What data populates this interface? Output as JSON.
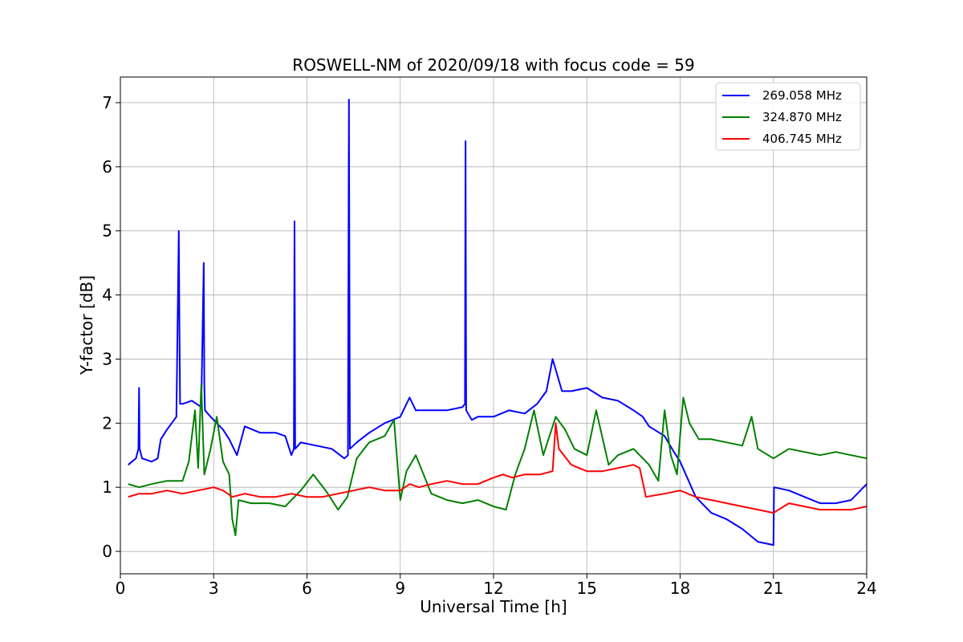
{
  "chart_data": {
    "type": "line",
    "title": "ROSWELL-NM of 2020/09/18 with focus code = 59",
    "xlabel": "Universal Time [h]",
    "ylabel": "Y-factor [dB]",
    "xlim": [
      0,
      24
    ],
    "ylim": [
      -0.35,
      7.4
    ],
    "xticks": [
      0,
      3,
      6,
      9,
      12,
      15,
      18,
      21,
      24
    ],
    "yticks": [
      0,
      1,
      2,
      3,
      4,
      5,
      6,
      7
    ],
    "xtick_labels": [
      "0",
      "3",
      "6",
      "9",
      "12",
      "15",
      "18",
      "21",
      "24"
    ],
    "ytick_labels": [
      "0",
      "1",
      "2",
      "3",
      "4",
      "5",
      "6",
      "7"
    ],
    "grid": true,
    "legend_position": "top-right",
    "series": [
      {
        "name": "269.058 MHz",
        "color": "#0000ff",
        "x": [
          0.25,
          0.5,
          0.58,
          0.6,
          0.62,
          0.7,
          1.0,
          1.2,
          1.3,
          1.5,
          1.8,
          1.88,
          1.9,
          1.92,
          2.0,
          2.3,
          2.6,
          2.68,
          2.7,
          2.72,
          2.9,
          3.3,
          3.5,
          3.75,
          4.0,
          4.5,
          5.0,
          5.3,
          5.5,
          5.58,
          5.6,
          5.62,
          5.8,
          6.3,
          6.8,
          7.2,
          7.32,
          7.35,
          7.38,
          7.6,
          8.0,
          8.5,
          9.0,
          9.3,
          9.5,
          10.0,
          10.5,
          11.0,
          11.08,
          11.1,
          11.12,
          11.3,
          11.5,
          12.0,
          12.5,
          13.0,
          13.4,
          13.7,
          13.9,
          14.2,
          14.5,
          15.0,
          15.5,
          16.0,
          16.5,
          16.8,
          17.0,
          17.5,
          17.8,
          18.0,
          18.5,
          19.0,
          19.5,
          20.0,
          20.5,
          21.0,
          21.02,
          21.5,
          22.0,
          22.5,
          23.0,
          23.5,
          24.0
        ],
        "y": [
          1.35,
          1.45,
          1.6,
          2.55,
          1.6,
          1.45,
          1.4,
          1.45,
          1.75,
          1.9,
          2.1,
          5.0,
          3.5,
          2.3,
          2.3,
          2.35,
          2.25,
          4.5,
          2.6,
          2.2,
          2.1,
          1.9,
          1.75,
          1.5,
          1.95,
          1.85,
          1.85,
          1.8,
          1.5,
          1.6,
          5.15,
          1.6,
          1.7,
          1.65,
          1.6,
          1.45,
          1.5,
          7.05,
          1.6,
          1.7,
          1.85,
          2.0,
          2.1,
          2.4,
          2.2,
          2.2,
          2.2,
          2.25,
          2.3,
          6.4,
          2.2,
          2.05,
          2.1,
          2.1,
          2.2,
          2.15,
          2.3,
          2.5,
          3.0,
          2.5,
          2.5,
          2.55,
          2.4,
          2.35,
          2.2,
          2.1,
          1.95,
          1.8,
          1.55,
          1.4,
          0.85,
          0.6,
          0.5,
          0.35,
          0.15,
          0.1,
          1.0,
          0.95,
          0.85,
          0.75,
          0.75,
          0.8,
          1.05
        ]
      },
      {
        "name": "324.870 MHz",
        "color": "#008000",
        "x": [
          0.25,
          0.6,
          1.0,
          1.5,
          2.0,
          2.2,
          2.4,
          2.5,
          2.6,
          2.7,
          2.9,
          3.1,
          3.3,
          3.5,
          3.6,
          3.7,
          3.8,
          4.2,
          4.8,
          5.3,
          5.8,
          6.2,
          6.6,
          7.0,
          7.3,
          7.6,
          8.0,
          8.5,
          8.8,
          9.0,
          9.2,
          9.5,
          10.0,
          10.5,
          11.0,
          11.5,
          12.0,
          12.4,
          12.7,
          13.0,
          13.3,
          13.6,
          14.0,
          14.3,
          14.6,
          15.0,
          15.3,
          15.7,
          16.0,
          16.5,
          16.7,
          17.0,
          17.3,
          17.5,
          17.7,
          17.9,
          18.1,
          18.3,
          18.6,
          19.0,
          19.5,
          20.0,
          20.3,
          20.5,
          21.0,
          21.5,
          22.0,
          22.5,
          23.0,
          23.5,
          24.0
        ],
        "y": [
          1.05,
          1.0,
          1.05,
          1.1,
          1.1,
          1.4,
          2.2,
          1.3,
          2.6,
          1.2,
          1.6,
          2.1,
          1.4,
          1.2,
          0.5,
          0.25,
          0.8,
          0.75,
          0.75,
          0.7,
          0.95,
          1.2,
          0.95,
          0.65,
          0.85,
          1.45,
          1.7,
          1.8,
          2.05,
          0.8,
          1.25,
          1.5,
          0.9,
          0.8,
          0.75,
          0.8,
          0.7,
          0.65,
          1.2,
          1.6,
          2.2,
          1.5,
          2.1,
          1.9,
          1.6,
          1.5,
          2.2,
          1.35,
          1.5,
          1.6,
          1.5,
          1.35,
          1.1,
          2.2,
          1.5,
          1.2,
          2.4,
          2.0,
          1.75,
          1.75,
          1.7,
          1.65,
          2.1,
          1.6,
          1.45,
          1.6,
          1.55,
          1.5,
          1.55,
          1.5,
          1.45
        ]
      },
      {
        "name": "406.745 MHz",
        "color": "#ff0000",
        "x": [
          0.25,
          0.6,
          1.0,
          1.5,
          2.0,
          2.5,
          3.0,
          3.3,
          3.6,
          4.0,
          4.5,
          5.0,
          5.5,
          6.0,
          6.5,
          7.0,
          7.5,
          8.0,
          8.5,
          9.0,
          9.3,
          9.6,
          10.0,
          10.5,
          11.0,
          11.5,
          12.0,
          12.3,
          12.6,
          13.0,
          13.5,
          13.9,
          14.0,
          14.1,
          14.5,
          15.0,
          15.5,
          16.0,
          16.5,
          16.7,
          16.9,
          17.5,
          18.0,
          18.5,
          19.0,
          19.5,
          20.0,
          20.5,
          21.0,
          21.5,
          22.0,
          22.5,
          23.0,
          23.5,
          24.0
        ],
        "y": [
          0.85,
          0.9,
          0.9,
          0.95,
          0.9,
          0.95,
          1.0,
          0.95,
          0.85,
          0.9,
          0.85,
          0.85,
          0.9,
          0.85,
          0.85,
          0.9,
          0.95,
          1.0,
          0.95,
          0.95,
          1.05,
          1.0,
          1.05,
          1.1,
          1.05,
          1.05,
          1.15,
          1.2,
          1.15,
          1.2,
          1.2,
          1.25,
          2.0,
          1.6,
          1.35,
          1.25,
          1.25,
          1.3,
          1.35,
          1.3,
          0.85,
          0.9,
          0.95,
          0.85,
          0.8,
          0.75,
          0.7,
          0.65,
          0.6,
          0.75,
          0.7,
          0.65,
          0.65,
          0.65,
          0.7
        ]
      }
    ]
  }
}
